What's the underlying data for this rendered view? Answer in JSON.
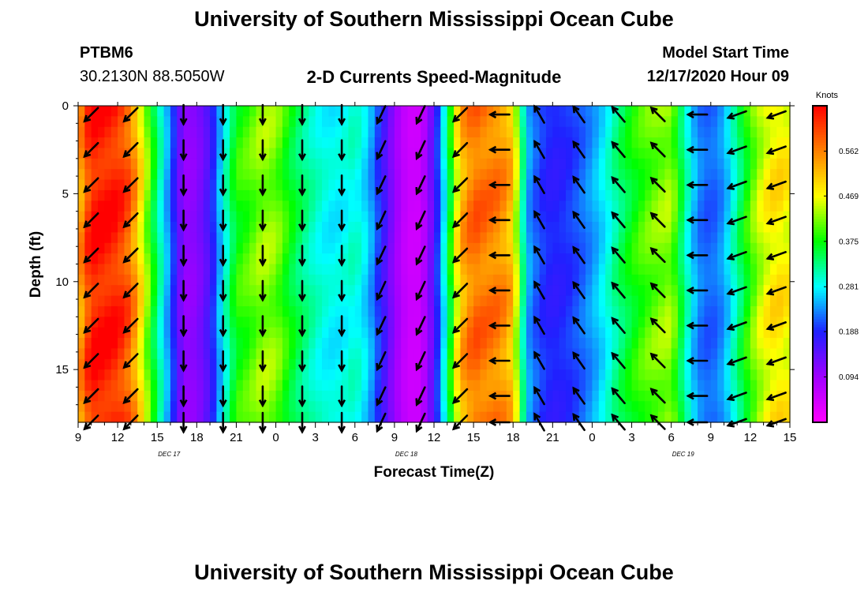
{
  "header": {
    "title_top": "University of Southern Mississippi Ocean Cube",
    "station_id": "PTBM6",
    "station_coords": "30.2130N 88.5050W",
    "plot_title": "2-D Currents Speed-Magnitude",
    "model_start_label": "Model Start Time",
    "model_start_value": "12/17/2020 Hour 09",
    "title_bottom": "University of Southern Mississippi Ocean Cube"
  },
  "chart_data": {
    "type": "heatmap",
    "title": "2-D Currents Speed-Magnitude",
    "xlabel": "Forecast Time(Z)",
    "ylabel": "Depth (ft)",
    "x_tick_labels": [
      "9",
      "12",
      "15",
      "18",
      "21",
      "0",
      "3",
      "6",
      "9",
      "12",
      "15",
      "18",
      "21",
      "0",
      "3",
      "6",
      "9",
      "12",
      "15"
    ],
    "date_labels": [
      "DEC 17",
      "DEC 18",
      "DEC 19"
    ],
    "date_label_tick_index": [
      2,
      8,
      15
    ],
    "y_tick_labels": [
      "0",
      "5",
      "10",
      "15"
    ],
    "y_tick_values": [
      0,
      5,
      10,
      15
    ],
    "ylim": [
      0,
      18
    ],
    "colorbar": {
      "unit": "Knots",
      "tick_labels": [
        "0.562",
        "0.469",
        "0.375",
        "0.281",
        "0.188",
        "0.094"
      ],
      "tick_values": [
        0.562,
        0.469,
        0.375,
        0.281,
        0.188,
        0.094
      ],
      "range": [
        0.0,
        0.656
      ],
      "colors": [
        "#ff00ff",
        "#a000ff",
        "#2020ff",
        "#00ffff",
        "#00ff00",
        "#ffff00",
        "#ff8000",
        "#ff0000"
      ]
    },
    "speed_columns_hours": [
      0,
      1,
      2,
      3,
      4,
      5,
      6,
      7,
      8,
      9,
      10,
      11,
      12,
      13,
      14,
      15,
      16,
      17,
      18,
      19,
      20,
      21,
      22,
      23,
      24,
      25,
      26,
      27,
      28,
      29,
      30,
      31,
      32,
      33,
      34,
      35,
      36,
      37,
      38,
      39,
      40,
      41,
      42,
      43,
      44,
      45,
      46,
      47,
      48,
      49,
      50,
      51,
      52,
      53,
      54
    ],
    "speed_knots": [
      0.52,
      0.64,
      0.64,
      0.63,
      0.58,
      0.45,
      0.33,
      0.22,
      0.1,
      0.11,
      0.16,
      0.28,
      0.38,
      0.4,
      0.43,
      0.42,
      0.37,
      0.33,
      0.3,
      0.28,
      0.28,
      0.3,
      0.26,
      0.18,
      0.1,
      0.05,
      0.05,
      0.15,
      0.32,
      0.52,
      0.58,
      0.57,
      0.56,
      0.51,
      0.25,
      0.2,
      0.18,
      0.19,
      0.21,
      0.24,
      0.28,
      0.33,
      0.37,
      0.4,
      0.42,
      0.43,
      0.32,
      0.23,
      0.21,
      0.24,
      0.32,
      0.4,
      0.46,
      0.49,
      0.47
    ],
    "arrow_times_hours": [
      1,
      4,
      8,
      11,
      14,
      17,
      20,
      23,
      26,
      29,
      32,
      35,
      38,
      41,
      44,
      47,
      50,
      53
    ],
    "arrow_directions_deg": [
      225,
      225,
      180,
      180,
      180,
      180,
      180,
      205,
      205,
      225,
      270,
      330,
      325,
      320,
      315,
      270,
      250,
      250
    ]
  }
}
